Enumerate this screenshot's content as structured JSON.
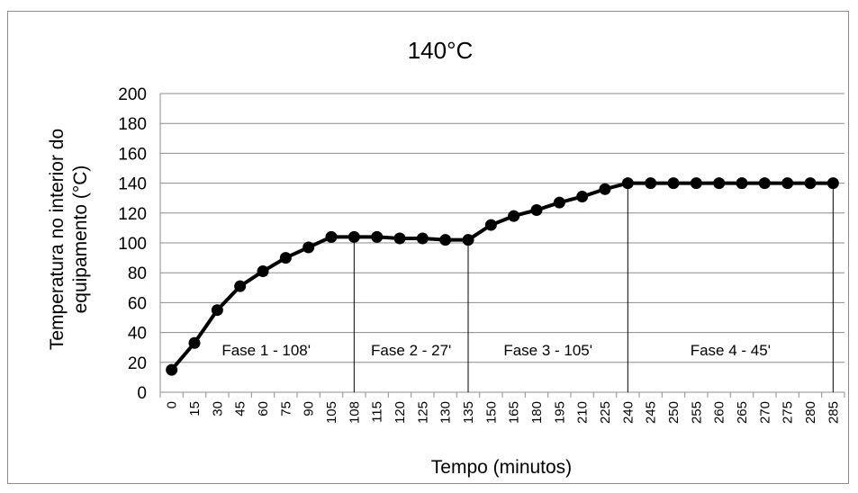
{
  "chart_data": {
    "type": "line",
    "title": "140°C",
    "xlabel": "Tempo (minutos)",
    "ylabel_lines": [
      "Temperatura no interior do",
      "equipamento (°C)"
    ],
    "ylim": [
      0,
      200
    ],
    "yticks": [
      0,
      20,
      40,
      60,
      80,
      100,
      120,
      140,
      160,
      180,
      200
    ],
    "grid": true,
    "categories": [
      "0",
      "15",
      "30",
      "45",
      "60",
      "75",
      "90",
      "105",
      "108",
      "115",
      "120",
      "125",
      "130",
      "135",
      "150",
      "165",
      "180",
      "195",
      "210",
      "225",
      "240",
      "245",
      "250",
      "255",
      "260",
      "265",
      "270",
      "275",
      "280",
      "285"
    ],
    "series": [
      {
        "values": [
          15,
          33,
          55,
          71,
          81,
          90,
          97,
          104,
          104,
          104,
          103,
          103,
          102,
          102,
          112,
          118,
          122,
          127,
          131,
          136,
          140,
          140,
          140,
          140,
          140,
          140,
          140,
          140,
          140,
          140
        ],
        "color": "#000000"
      }
    ],
    "phase_dividers": [
      "108",
      "135",
      "240",
      "285"
    ],
    "phase_labels": [
      {
        "text": "Fase 1 - 108'",
        "from": "0",
        "to": "108"
      },
      {
        "text": "Fase 2 - 27'",
        "from": "108",
        "to": "135"
      },
      {
        "text": "Fase 3 - 105'",
        "from": "135",
        "to": "240"
      },
      {
        "text": "Fase 4 - 45'",
        "from": "240",
        "to": "285"
      }
    ]
  }
}
